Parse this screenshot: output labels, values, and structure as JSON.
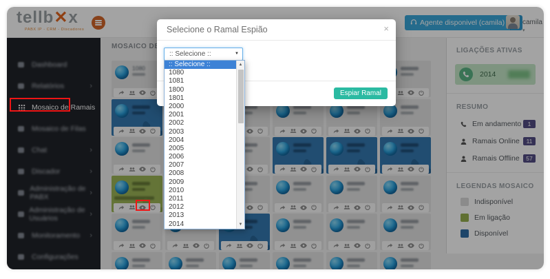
{
  "header": {
    "logo_pre": "tellb",
    "logo_accent": "✕",
    "logo_post": "x",
    "logo_subtitle": "PABX IP - CRM - Discadores",
    "menu_icon": "hamburger-icon",
    "agent_button_label": "Agente disponivel (camila)",
    "agent_caret": "▼",
    "username": "camila",
    "username_caret": "▾"
  },
  "sidebar": {
    "items": [
      {
        "label": "Dashboard",
        "icon": "dashboard-icon",
        "chevron": false,
        "active": false
      },
      {
        "label": "Relatórios",
        "icon": "reports-icon",
        "chevron": true,
        "active": false
      },
      {
        "label": "Mosaico de Ramais",
        "icon": "grid-icon",
        "chevron": false,
        "active": true
      },
      {
        "label": "Mosaico de Filas",
        "icon": "grid-icon",
        "chevron": false,
        "active": false
      },
      {
        "label": "Chat",
        "icon": "chat-icon",
        "chevron": true,
        "active": false
      },
      {
        "label": "Discador",
        "icon": "dialer-icon",
        "chevron": true,
        "active": false
      },
      {
        "label": "Administração de PABX",
        "icon": "pabx-icon",
        "chevron": true,
        "active": false
      },
      {
        "label": "Administração de Usuários",
        "icon": "users-admin-icon",
        "chevron": true,
        "active": false
      },
      {
        "label": "Monitoramento",
        "icon": "monitoring-icon",
        "chevron": true,
        "active": false
      },
      {
        "label": "Configurações",
        "icon": "settings-icon",
        "chevron": false,
        "active": false
      }
    ]
  },
  "main": {
    "title": "MOSAICO DE RAMAIS"
  },
  "modal": {
    "title": "Selecione o Ramal Espião",
    "close_label": "×",
    "select_value": ":: Selecione ::",
    "select_caret": "▼",
    "options": [
      ":: Selecione ::",
      "1080",
      "1081",
      "1800",
      "1801",
      "2000",
      "2001",
      "2002",
      "2003",
      "2004",
      "2005",
      "2006",
      "2007",
      "2008",
      "2009",
      "2010",
      "2011",
      "2012",
      "2013",
      "2014"
    ],
    "selected_index": 0,
    "submit_label": "Espiar Ramal",
    "scroll_up": "▲",
    "scroll_down": "▼"
  },
  "right_panel": {
    "active_calls_title": "LIGAÇÕES ATIVAS",
    "active_call_extension": "2014",
    "summary_title": "RESUMO",
    "summary": [
      {
        "label": "Em andamento",
        "icon": "phone-icon",
        "value": "1"
      },
      {
        "label": "Ramais Online",
        "icon": "person-icon",
        "value": "11"
      },
      {
        "label": "Ramais Offline",
        "icon": "person-icon",
        "value": "57"
      }
    ],
    "legend_title": "LEGENDAS MOSAICO",
    "legend": [
      {
        "label": "Indisponível",
        "color": "#d9d9d9"
      },
      {
        "label": "Em ligação",
        "color": "#96b04f"
      },
      {
        "label": "Disponível",
        "color": "#2e6da4"
      }
    ]
  },
  "tiles": {
    "cells": [
      "gray",
      "gray",
      "gray",
      "gray",
      "gray",
      "gray",
      "blue",
      "gray",
      "gray",
      "gray",
      "gray",
      "gray",
      "gray",
      "gray",
      "gray",
      "blue",
      "blue",
      "blue",
      "green",
      "gray",
      "gray",
      "gray",
      "gray",
      "gray",
      "gray",
      "gray",
      "blue",
      "gray",
      "gray",
      "gray",
      "gray",
      "gray",
      "gray",
      "gray",
      "gray",
      "gray"
    ],
    "labels": {
      "0": "1080",
      "25": "2021"
    },
    "green_time_tile": 18
  },
  "colors": {
    "accent_orange": "#e2641f",
    "agent_blue": "#3ba8dc",
    "teal_button": "#2bbaa2",
    "tile_blue": "#3579b1",
    "tile_green": "#9db657",
    "badge_purple": "#544e86",
    "annotation_red": "#ef1515",
    "dropdown_highlight": "#3d82d6",
    "call_green_bg": "#c5e8c8"
  }
}
